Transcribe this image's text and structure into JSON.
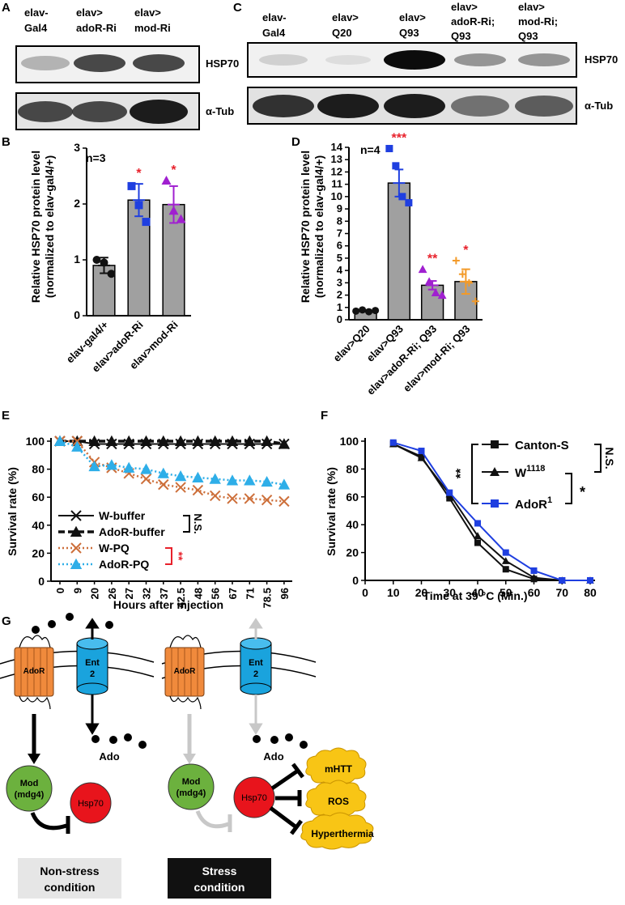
{
  "panels": {
    "A": {
      "letter": "A",
      "lane_labels": [
        [
          "elav-",
          "Gal4"
        ],
        [
          "elav>",
          "adoR-Ri"
        ],
        [
          "elav>",
          "mod-Ri"
        ]
      ],
      "row_labels": [
        "HSP70",
        "α-Tub"
      ]
    },
    "C": {
      "letter": "C",
      "lane_labels": [
        [
          "elav-",
          "Gal4"
        ],
        [
          "elav>",
          "Q20"
        ],
        [
          "elav>",
          "Q93"
        ],
        [
          "elav>",
          "adoR-Ri;",
          "Q93"
        ],
        [
          "elav>",
          "mod-Ri;",
          "Q93"
        ]
      ],
      "row_labels": [
        "HSP70",
        "α-Tub"
      ]
    },
    "B": {
      "letter": "B",
      "n_label": "n=3"
    },
    "D": {
      "letter": "D",
      "n_label": "n=4"
    },
    "E": {
      "letter": "E"
    },
    "F": {
      "letter": "F"
    },
    "G": {
      "letter": "G",
      "left": {
        "adoR": "AdoR",
        "ent_line1": "Ent",
        "ent_line2": "2",
        "ado": "Ado",
        "mod_line1": "Mod",
        "mod_line2": "(mdg4)",
        "hsp70": "Hsp70",
        "box_line1": "Non-stress",
        "box_line2": "condition"
      },
      "right": {
        "adoR": "AdoR",
        "ent_line1": "Ent",
        "ent_line2": "2",
        "ado": "Ado",
        "mod_line1": "Mod",
        "mod_line2": "(mdg4)",
        "hsp70": "Hsp70",
        "targets": [
          "mHTT",
          "ROS",
          "Hyperthermia"
        ],
        "box_line1": "Stress",
        "box_line2": "condition"
      }
    }
  },
  "colors": {
    "bar_gray": "#a0a0a0",
    "red": "#e8212b",
    "blue": "#1f3fe0",
    "purple": "#a020d0",
    "orange": "#f39a28",
    "brown": "#cd6f3a",
    "cyan": "#2eaee8",
    "adoR_orange": "#f08a3c",
    "ent_cyan": "#1aa3dd",
    "mod_green": "#6cb13e",
    "hsp_red": "#e8141c",
    "cloud_yellow": "#f8c515",
    "arrow_gray": "#c8c8c8",
    "light_box": "#e6e6e6"
  },
  "chart_data": [
    {
      "id": "B",
      "type": "bar",
      "title": "",
      "ylabel": "Relative HSP70 protein level (normalized to elav-gal4/+)",
      "ylabel_lines": [
        "Relative HSP70 protein level",
        "(normalized to elav-gal4/+)"
      ],
      "xlabel": "",
      "categories": [
        "elav-gal4/+",
        "elav>adoR-Ri",
        "elav>mod-Ri"
      ],
      "values": [
        0.9,
        2.07,
        1.99
      ],
      "sem": [
        0.14,
        0.29,
        0.33
      ],
      "points": [
        [
          1.0,
          0.95,
          0.75
        ],
        [
          2.32,
          1.98,
          1.68
        ],
        [
          2.42,
          1.88,
          1.73
        ]
      ],
      "point_colors": [
        "#111111",
        "#1f3fe0",
        "#a020d0"
      ],
      "point_shapes": [
        "circle",
        "square",
        "triangle"
      ],
      "significance": [
        "",
        "*",
        "*"
      ],
      "ylim": [
        0,
        3
      ],
      "yticks": [
        0,
        1,
        2,
        3
      ]
    },
    {
      "id": "D",
      "type": "bar",
      "title": "",
      "ylabel": "Relative HSP70 protein level (normalized to elav-gal4/+)",
      "ylabel_lines": [
        "Relative HSP70 protein level",
        "(normalized to elav-gal4/+)"
      ],
      "xlabel": "",
      "categories": [
        "elav>Q20",
        "elav>Q93",
        "elav>adoR-Ri; Q93",
        "elav>mod-Ri; Q93"
      ],
      "values": [
        0.72,
        11.1,
        2.8,
        3.1
      ],
      "sem": [
        0.07,
        1.1,
        0.35,
        1.0
      ],
      "points": [
        [
          0.7,
          0.8,
          0.65,
          0.75
        ],
        [
          13.9,
          12.5,
          10.0,
          9.5
        ],
        [
          4.1,
          3.1,
          2.2,
          2.0
        ],
        [
          4.8,
          3.7,
          3.0,
          1.5
        ]
      ],
      "point_colors": [
        "#111111",
        "#1f3fe0",
        "#a020d0",
        "#f39a28"
      ],
      "point_shapes": [
        "circle",
        "square",
        "triangle",
        "plus"
      ],
      "significance": [
        "",
        "***",
        "**",
        "*"
      ],
      "ylim": [
        0,
        14
      ],
      "yticks": [
        0,
        1,
        2,
        3,
        4,
        5,
        6,
        7,
        8,
        9,
        10,
        11,
        12,
        13,
        14
      ]
    },
    {
      "id": "E",
      "type": "line",
      "title": "",
      "xlabel": "Hours after injection",
      "ylabel": "Survival rate (%)",
      "x": [
        "0",
        "9",
        "20",
        "26",
        "27",
        "32",
        "37",
        "42.5",
        "48",
        "56",
        "67",
        "71",
        "78.5",
        "96"
      ],
      "ylim": [
        0,
        100
      ],
      "yticks": [
        0,
        20,
        40,
        60,
        80,
        100
      ],
      "series": [
        {
          "name": "W-buffer",
          "marker": "x",
          "style": "solid",
          "color": "#111111",
          "values": [
            100,
            100,
            98,
            98,
            98,
            98,
            98,
            98,
            98,
            98,
            98,
            98,
            98,
            98
          ]
        },
        {
          "name": "AdoR-buffer",
          "marker": "triangle",
          "style": "dashed",
          "color": "#111111",
          "values": [
            100,
            100,
            100,
            100,
            100,
            100,
            100,
            100,
            100,
            100,
            100,
            100,
            100,
            98
          ]
        },
        {
          "name": "W-PQ",
          "marker": "x",
          "style": "dotted",
          "color": "#cd6f3a",
          "values": [
            100,
            100,
            85,
            81,
            77,
            73,
            69,
            67,
            65,
            61,
            59,
            59,
            58,
            57
          ]
        },
        {
          "name": "AdoR-PQ",
          "marker": "triangle",
          "style": "dotted",
          "color": "#2eaee8",
          "values": [
            100,
            96,
            82,
            83,
            81,
            80,
            77,
            75,
            74,
            73,
            72,
            72,
            71,
            69
          ]
        }
      ],
      "legend_position": "bottom-left",
      "comparisons": [
        {
          "label": "N.S.",
          "between": [
            "W-buffer",
            "AdoR-buffer"
          ],
          "color": "#111111"
        },
        {
          "label": "**",
          "between": [
            "W-PQ",
            "AdoR-PQ"
          ],
          "color": "#e8212b"
        }
      ]
    },
    {
      "id": "F",
      "type": "line",
      "title": "",
      "xlabel": "Time at 39 °C (Min.)",
      "ylabel": "Survival rate (%)",
      "x": [
        0,
        10,
        20,
        30,
        40,
        50,
        60,
        70,
        80
      ],
      "xlim": [
        0,
        80
      ],
      "xticks": [
        0,
        10,
        20,
        30,
        40,
        50,
        60,
        70,
        80
      ],
      "ylim": [
        0,
        100
      ],
      "yticks": [
        0,
        20,
        40,
        60,
        80,
        100
      ],
      "series": [
        {
          "name": "Canton-S",
          "marker": "square",
          "color": "#111111",
          "x": [
            10,
            20,
            30,
            40,
            50,
            60,
            70,
            80
          ],
          "values": [
            98,
            89,
            59,
            27,
            8,
            1,
            0,
            0
          ]
        },
        {
          "name": "W",
          "name_sup": "1118",
          "marker": "triangle",
          "color": "#111111",
          "x": [
            10,
            20,
            30,
            40,
            50,
            60,
            70,
            80
          ],
          "values": [
            98,
            88,
            62,
            32,
            14,
            2,
            0,
            0
          ]
        },
        {
          "name": "AdoR",
          "name_sup": "1",
          "marker": "square",
          "color": "#1f3fe0",
          "x": [
            10,
            20,
            30,
            40,
            50,
            60,
            70,
            80
          ],
          "values": [
            99,
            93,
            63,
            41,
            20,
            7,
            0,
            0
          ]
        }
      ],
      "legend_position": "top-right",
      "comparisons": [
        {
          "label": "N.S.",
          "between": [
            "Canton-S",
            "W1118"
          ]
        },
        {
          "label": "*",
          "between": [
            "W1118",
            "AdoR1"
          ]
        },
        {
          "label": "**",
          "between": [
            "Canton-S",
            "AdoR1"
          ]
        }
      ]
    }
  ]
}
